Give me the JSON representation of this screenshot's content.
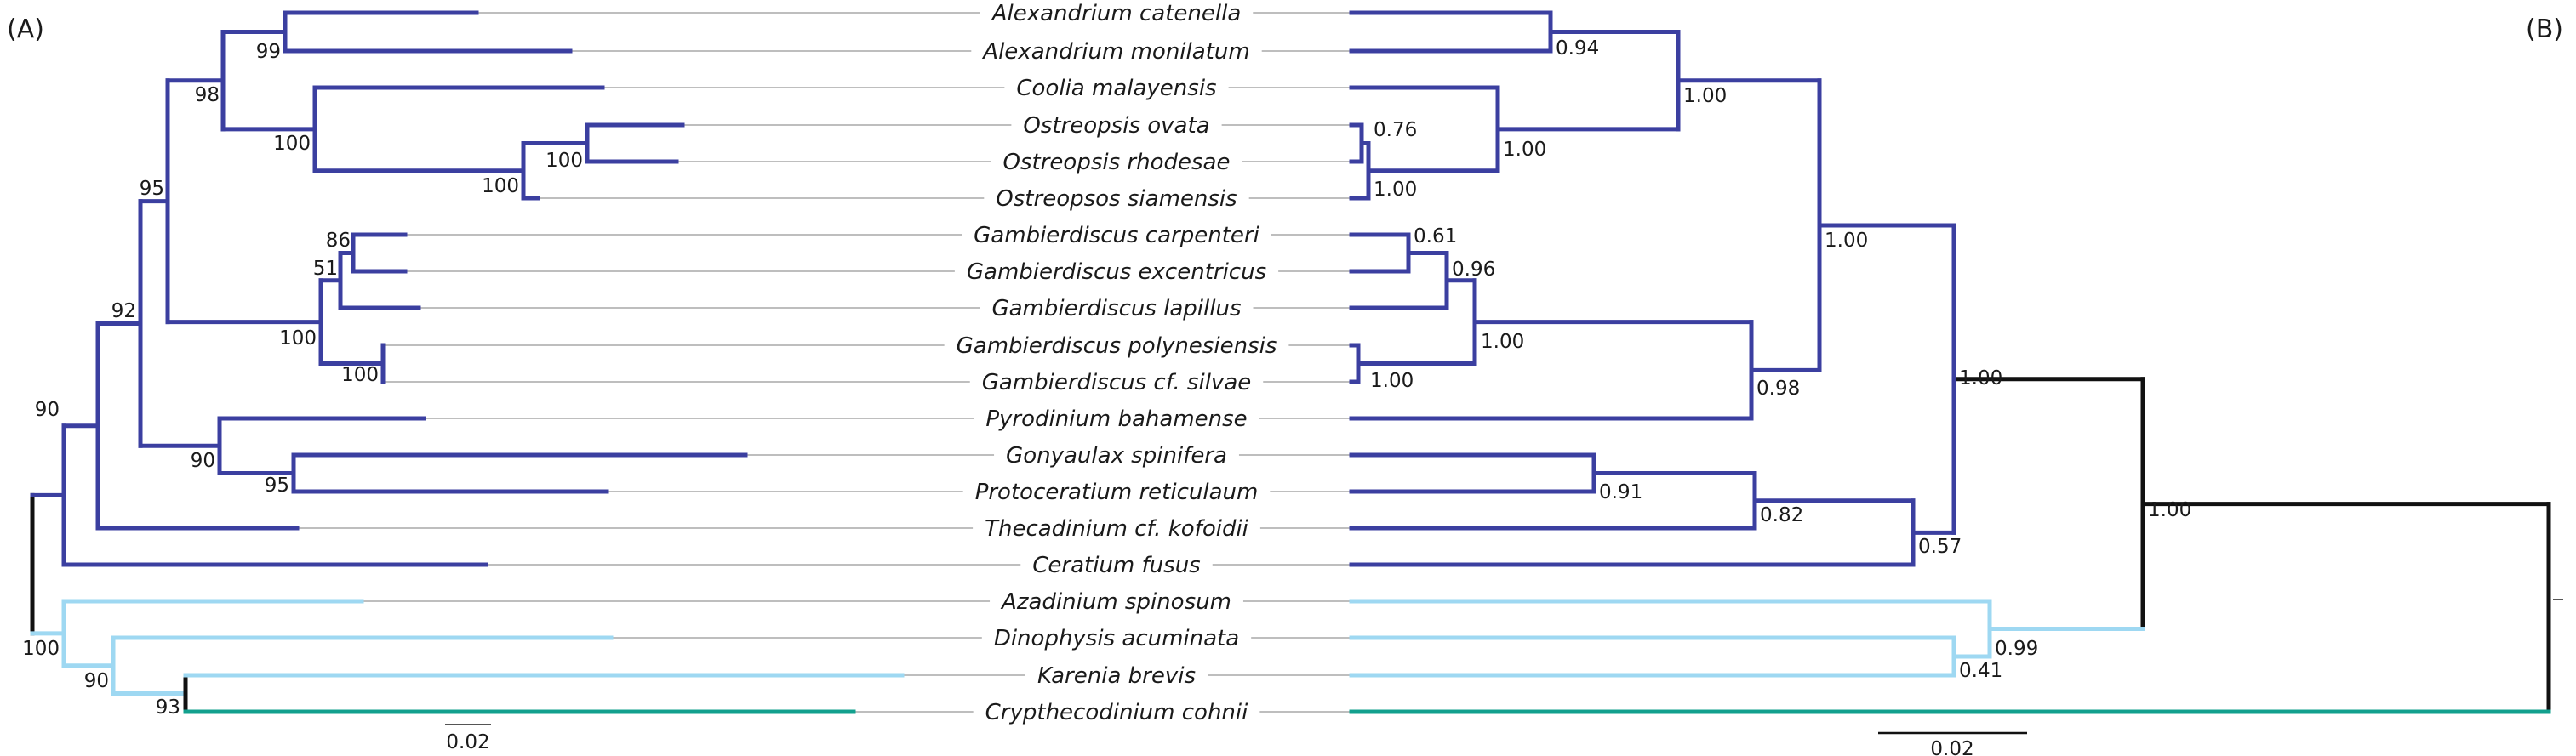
{
  "panels": {
    "left": "(A)",
    "right": "(B)"
  },
  "taxa": [
    "Alexandrium catenella",
    "Alexandrium monilatum",
    "Coolia malayensis",
    "Ostreopsis ovata",
    "Ostreopsis rhodesae",
    "Ostreopsos siamensis",
    "Gambierdiscus carpenteri",
    "Gambierdiscus excentricus",
    "Gambierdiscus lapillus",
    "Gambierdiscus polynesiensis",
    "Gambierdiscus cf. silvae",
    "Pyrodinium bahamense",
    "Gonyaulax spinifera",
    "Protoceratium reticulaum",
    "Thecadinium cf. kofoidii",
    "Ceratium fusus",
    "Azadinium spinosum",
    "Dinophysis acuminata",
    "Karenia brevis",
    "Crypthecodinium cohnii"
  ],
  "colors": {
    "ingroup": "#3b3fa0",
    "outgroup": "#9ed8f2",
    "outgroup_root": "#111111",
    "crypthecodinium": "#12a08e",
    "guide": "#a8a8a8"
  },
  "scale_bars": {
    "left": "0.02",
    "right": "0.02"
  },
  "left_support": [
    {
      "node": "alexandrium",
      "value": "99"
    },
    {
      "node": "alexandrium-ostreopsis",
      "value": "98"
    },
    {
      "node": "coolia-ostreopsis",
      "value": "100"
    },
    {
      "node": "ovata-rhodesae",
      "value": "100"
    },
    {
      "node": "ostreopsis",
      "value": "100"
    },
    {
      "node": "gambier-carp-exc",
      "value": "86"
    },
    {
      "node": "gambier-carp-exc-lap",
      "value": "51"
    },
    {
      "node": "gambierdiscus",
      "value": "100"
    },
    {
      "node": "gambier-poly-silvae",
      "value": "100"
    },
    {
      "node": "gonyaulacales-upper",
      "value": "95"
    },
    {
      "node": "gonyaulacales",
      "value": "92"
    },
    {
      "node": "pyrodinium-gony-proto",
      "value": "90"
    },
    {
      "node": "gony-proto",
      "value": "95"
    },
    {
      "node": "gonyaulacales-ceratium",
      "value": "90"
    },
    {
      "node": "outgroup",
      "value": "100"
    },
    {
      "node": "dino-karenia-cryp",
      "value": "90"
    },
    {
      "node": "karenia-cryp",
      "value": "93"
    }
  ],
  "right_support": [
    {
      "node": "alexandrium",
      "value": "0.94"
    },
    {
      "node": "alexandrium-coolia",
      "value": "1.00"
    },
    {
      "node": "ovata-rhodesae",
      "value": "0.76"
    },
    {
      "node": "ostreopsis",
      "value": "1.00"
    },
    {
      "node": "coolia-ostreopsis",
      "value": "1.00"
    },
    {
      "node": "gambier-carp-exc",
      "value": "0.61"
    },
    {
      "node": "gambier-carp-exc-lap",
      "value": "0.96"
    },
    {
      "node": "gambier-poly-silvae",
      "value": "1.00"
    },
    {
      "node": "gambierdiscus",
      "value": "1.00"
    },
    {
      "node": "gambier-pyrodinium",
      "value": "0.98"
    },
    {
      "node": "upper-gonyaulacales",
      "value": "1.00"
    },
    {
      "node": "gony-proto",
      "value": "0.91"
    },
    {
      "node": "gony-proto-thecadinium",
      "value": "0.82"
    },
    {
      "node": "with-ceratium",
      "value": "0.57"
    },
    {
      "node": "gonyaulacales",
      "value": "1.00"
    },
    {
      "node": "azadinium-dinophysis",
      "value": "0.99"
    },
    {
      "node": "dinophysis-karenia",
      "value": "0.41"
    },
    {
      "node": "all-but-cryp",
      "value": "1.00"
    }
  ]
}
